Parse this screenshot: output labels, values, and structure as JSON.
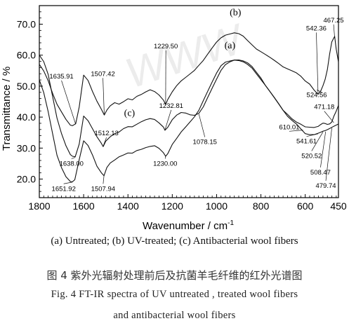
{
  "chart_data": {
    "type": "line",
    "xlabel": "Wavenumber / cm",
    "xlabel_sup": "-1",
    "ylabel": "Transmittance / %",
    "xlim": [
      1800,
      450
    ],
    "ylim": [
      14,
      76
    ],
    "x_ticks": [
      1800,
      1600,
      1400,
      1200,
      1000,
      800,
      600,
      450
    ],
    "x_tick_labels": [
      "1800",
      "1600",
      "1400",
      "1200",
      "1000",
      "800",
      "600",
      "450"
    ],
    "y_ticks": [
      20,
      30,
      40,
      50,
      60,
      70
    ],
    "y_tick_labels": [
      "20.0",
      "30.0",
      "40.0",
      "50.0",
      "60.0",
      "70.0"
    ],
    "grid": false,
    "series": [
      {
        "name": "(b)",
        "x": [
          1800,
          1780,
          1760,
          1740,
          1720,
          1700,
          1680,
          1660,
          1650,
          1636,
          1620,
          1600,
          1580,
          1560,
          1540,
          1520,
          1507,
          1495,
          1480,
          1460,
          1440,
          1420,
          1400,
          1380,
          1360,
          1340,
          1320,
          1300,
          1280,
          1260,
          1240,
          1230,
          1220,
          1200,
          1180,
          1160,
          1140,
          1120,
          1100,
          1080,
          1060,
          1040,
          1020,
          1000,
          980,
          960,
          940,
          920,
          900,
          880,
          860,
          840,
          820,
          800,
          780,
          760,
          740,
          720,
          700,
          680,
          660,
          640,
          620,
          600,
          580,
          560,
          542,
          530,
          520,
          510,
          500,
          490,
          480,
          470,
          467,
          460,
          450
        ],
        "y": [
          57,
          55,
          52,
          48,
          44.5,
          42,
          39.5,
          37.5,
          37.2,
          37.7,
          43,
          53.2,
          51.5,
          48,
          45,
          42.5,
          40.8,
          42.5,
          44,
          45,
          44.5,
          45.2,
          46,
          45.5,
          46.5,
          47,
          47.8,
          48.5,
          48,
          47,
          45.5,
          44.2,
          46,
          48.5,
          50.5,
          52,
          53,
          54,
          55,
          56.5,
          58,
          60,
          62,
          64,
          65.5,
          66.5,
          67,
          67.5,
          67.3,
          66.5,
          65,
          63.5,
          62,
          61,
          60,
          59,
          58,
          57,
          56,
          55.5,
          55,
          54.5,
          53.5,
          52,
          51,
          49,
          47.5,
          48.5,
          50,
          52,
          55,
          60,
          64,
          65.5,
          66,
          62,
          58
        ]
      },
      {
        "name": "(a)",
        "x": [
          1800,
          1780,
          1760,
          1740,
          1720,
          1700,
          1680,
          1660,
          1652,
          1640,
          1620,
          1600,
          1580,
          1560,
          1540,
          1520,
          1508,
          1495,
          1480,
          1460,
          1440,
          1420,
          1400,
          1380,
          1360,
          1340,
          1320,
          1300,
          1280,
          1260,
          1240,
          1230,
          1220,
          1200,
          1180,
          1160,
          1140,
          1120,
          1100,
          1080,
          1060,
          1040,
          1020,
          1000,
          980,
          960,
          940,
          920,
          900,
          880,
          860,
          840,
          820,
          800,
          780,
          760,
          740,
          720,
          700,
          680,
          660,
          640,
          620,
          610,
          600,
          580,
          560,
          542,
          530,
          520,
          510,
          500,
          490,
          480,
          470,
          460,
          450
        ],
        "y": [
          52,
          48,
          42,
          35,
          28,
          24,
          21,
          19.3,
          19,
          19.6,
          26,
          32,
          30.5,
          27.5,
          24,
          22,
          21.2,
          24,
          25.5,
          26.5,
          27.5,
          28,
          28.5,
          28.3,
          29,
          29.3,
          29.8,
          30.2,
          30.5,
          29.8,
          28.5,
          27.5,
          28.5,
          31.5,
          33.5,
          35.5,
          37,
          38.5,
          40,
          42,
          45,
          48,
          51,
          54,
          56.5,
          57.8,
          58.3,
          58.7,
          58.6,
          58.2,
          57.3,
          56,
          54,
          52,
          50,
          48,
          46,
          44,
          42,
          40.2,
          39,
          38,
          36.5,
          35.8,
          35,
          34.6,
          34.5,
          34.8,
          35,
          35.2,
          35.3,
          35.6,
          36,
          36.5,
          37,
          37.5,
          38
        ]
      },
      {
        "name": "(c)",
        "x": [
          1800,
          1780,
          1760,
          1740,
          1720,
          1700,
          1680,
          1660,
          1650,
          1638,
          1620,
          1600,
          1580,
          1560,
          1540,
          1520,
          1512,
          1500,
          1480,
          1460,
          1440,
          1420,
          1400,
          1380,
          1360,
          1340,
          1320,
          1300,
          1280,
          1260,
          1240,
          1233,
          1220,
          1200,
          1180,
          1160,
          1140,
          1120,
          1100,
          1080,
          1060,
          1040,
          1020,
          1000,
          980,
          960,
          940,
          920,
          900,
          880,
          860,
          840,
          820,
          800,
          780,
          760,
          740,
          720,
          700,
          680,
          660,
          640,
          620,
          610,
          600,
          580,
          560,
          542,
          530,
          520,
          510,
          500,
          490,
          480,
          471,
          460,
          450
        ],
        "y": [
          60,
          58,
          54,
          47,
          40,
          35,
          31,
          28,
          27.3,
          27,
          31,
          40,
          38.5,
          36,
          33.5,
          31.5,
          30.6,
          32.5,
          34,
          35,
          35.5,
          36.5,
          37,
          36.8,
          37.5,
          38.2,
          38.8,
          39.2,
          39,
          38,
          36.8,
          35.9,
          37,
          39.5,
          41,
          41.8,
          41.5,
          40.8,
          40.5,
          41,
          43,
          46,
          49,
          52,
          55,
          57,
          58,
          58.7,
          58.8,
          58.5,
          57.8,
          56.5,
          54.5,
          52.5,
          50,
          48,
          46,
          44,
          42,
          40.8,
          39.5,
          38.6,
          38,
          37.6,
          37.2,
          37,
          36.8,
          37,
          37.5,
          37.8,
          37.6,
          37.3,
          37.5,
          38.2,
          40.2,
          42,
          44
        ]
      }
    ],
    "series_labels": [
      {
        "text": "(b)",
        "x": 915,
        "y": 72.8
      },
      {
        "text": "(a)",
        "x": 940,
        "y": 62.2
      },
      {
        "text": "(c)",
        "x": 1393,
        "y": 40.4
      }
    ],
    "annotations": [
      {
        "text": "1635.91",
        "tx": 1700,
        "ty": 52.5,
        "ax": 1636,
        "ay": 37.7
      },
      {
        "text": "1507.42",
        "tx": 1513,
        "ty": 53.3,
        "ax": 1507,
        "ay": 40.8
      },
      {
        "text": "1229.50",
        "tx": 1229,
        "ty": 62.2,
        "ax": 1230,
        "ay": 44.2
      },
      {
        "text": "1232.81",
        "tx": 1205,
        "ty": 43.0,
        "ax": 1233,
        "ay": 35.9
      },
      {
        "text": "1512.13",
        "tx": 1497,
        "ty": 34.1,
        "ax": 1512,
        "ay": 30.6
      },
      {
        "text": "1078.15",
        "tx": 1053,
        "ty": 31.3,
        "ax": 1080,
        "ay": 41.0
      },
      {
        "text": "1230.00",
        "tx": 1232,
        "ty": 24.3,
        "ax": 1230,
        "ay": 27.5
      },
      {
        "text": "1638.00",
        "tx": 1655,
        "ty": 24.3,
        "ax": 1638,
        "ay": 27.0
      },
      {
        "text": "1651.92",
        "tx": 1690,
        "ty": 16.2,
        "ax": 1652,
        "ay": 19.0
      },
      {
        "text": "1507.94",
        "tx": 1512,
        "ty": 16.2,
        "ax": 1508,
        "ay": 21.2
      },
      {
        "text": "542.36",
        "tx": 550,
        "ty": 68.0,
        "ax": 542,
        "ay": 47.5
      },
      {
        "text": "467.25",
        "tx": 472,
        "ty": 70.6,
        "ax": 467,
        "ay": 65.5
      },
      {
        "text": "524.56",
        "tx": 548,
        "ty": 46.5,
        "ax": 524,
        "ay": 48.0
      },
      {
        "text": "471.18",
        "tx": 514,
        "ty": 42.6,
        "ax": 471,
        "ay": 38.2
      },
      {
        "text": "610.01",
        "tx": 672,
        "ty": 36.1,
        "ax": 610,
        "ay": 35.8
      },
      {
        "text": "541.61",
        "tx": 594,
        "ty": 31.5,
        "ax": 542,
        "ay": 34.6
      },
      {
        "text": "520.52",
        "tx": 571,
        "ty": 26.8,
        "ax": 520,
        "ay": 35.2
      },
      {
        "text": "508.47",
        "tx": 531,
        "ty": 21.5,
        "ax": 508,
        "ay": 35.3
      },
      {
        "text": "479.74",
        "tx": 507,
        "ty": 17.2,
        "ax": 480,
        "ay": 36.5
      }
    ],
    "watermark": "WWW"
  },
  "legend": "(a) Untreated;  (b) UV-treated; (c) Antibacterial wool fibers",
  "caption": {
    "cn": "图 4    紫外光辐射处理前后及抗菌羊毛纤维的红外光谱图",
    "en_line1": "Fig. 4    FT-IR spectra of UV untreated , treated wool fibers",
    "en_line2": "and antibacterial wool fibers"
  }
}
